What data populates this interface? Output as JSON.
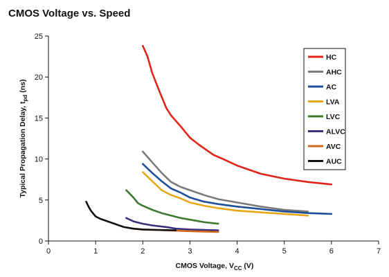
{
  "chart_data": {
    "type": "line",
    "title": "CMOS Voltage vs. Speed",
    "xlabel_main": "CMOS Voltage, V",
    "xlabel_sub": "CC",
    "xlabel_tail": " (V)",
    "ylabel_main": "Typical Propagation Delay, t",
    "ylabel_sub": "pd",
    "ylabel_tail": " (ns)",
    "xlim": [
      0,
      7
    ],
    "ylim": [
      0,
      25
    ],
    "xticks": [
      0,
      1,
      2,
      3,
      4,
      5,
      6,
      7
    ],
    "yticks": [
      0,
      5,
      10,
      15,
      20,
      25
    ],
    "grid": false,
    "legend_position": "top-right",
    "series": [
      {
        "name": "HC",
        "color": "#e2231a",
        "points": [
          [
            2.0,
            23.8
          ],
          [
            2.1,
            22.5
          ],
          [
            2.2,
            20.5
          ],
          [
            2.35,
            18.3
          ],
          [
            2.5,
            16.2
          ],
          [
            2.6,
            15.3
          ],
          [
            2.8,
            14.0
          ],
          [
            3.0,
            12.6
          ],
          [
            3.2,
            11.7
          ],
          [
            3.5,
            10.5
          ],
          [
            3.7,
            10.0
          ],
          [
            4.0,
            9.2
          ],
          [
            4.5,
            8.2
          ],
          [
            5.0,
            7.6
          ],
          [
            5.5,
            7.2
          ],
          [
            6.0,
            6.9
          ]
        ]
      },
      {
        "name": "AHC",
        "color": "#7a7a7a",
        "points": [
          [
            2.0,
            10.9
          ],
          [
            2.2,
            9.6
          ],
          [
            2.4,
            8.3
          ],
          [
            2.6,
            7.2
          ],
          [
            2.8,
            6.6
          ],
          [
            3.0,
            6.2
          ],
          [
            3.3,
            5.6
          ],
          [
            3.6,
            5.1
          ],
          [
            4.0,
            4.7
          ],
          [
            4.5,
            4.2
          ],
          [
            5.0,
            3.8
          ],
          [
            5.5,
            3.6
          ]
        ]
      },
      {
        "name": "AC",
        "color": "#1f4e9b",
        "points": [
          [
            2.0,
            9.4
          ],
          [
            2.2,
            8.3
          ],
          [
            2.4,
            7.3
          ],
          [
            2.6,
            6.4
          ],
          [
            2.8,
            5.9
          ],
          [
            3.0,
            5.3
          ],
          [
            3.3,
            4.8
          ],
          [
            3.6,
            4.5
          ],
          [
            4.0,
            4.2
          ],
          [
            4.5,
            3.9
          ],
          [
            5.0,
            3.6
          ],
          [
            5.5,
            3.4
          ],
          [
            6.0,
            3.3
          ]
        ]
      },
      {
        "name": "LVA",
        "color": "#e6a817",
        "points": [
          [
            2.0,
            8.4
          ],
          [
            2.2,
            7.3
          ],
          [
            2.4,
            6.2
          ],
          [
            2.6,
            5.6
          ],
          [
            2.8,
            5.2
          ],
          [
            3.0,
            4.7
          ],
          [
            3.3,
            4.3
          ],
          [
            3.6,
            4.0
          ],
          [
            4.0,
            3.7
          ],
          [
            4.5,
            3.5
          ],
          [
            5.0,
            3.3
          ],
          [
            5.5,
            3.1
          ]
        ]
      },
      {
        "name": "LVC",
        "color": "#3d7a2f",
        "points": [
          [
            1.65,
            6.2
          ],
          [
            1.8,
            5.3
          ],
          [
            1.9,
            4.6
          ],
          [
            2.0,
            4.3
          ],
          [
            2.2,
            3.8
          ],
          [
            2.4,
            3.4
          ],
          [
            2.6,
            3.1
          ],
          [
            2.8,
            2.8
          ],
          [
            3.0,
            2.6
          ],
          [
            3.3,
            2.3
          ],
          [
            3.6,
            2.1
          ]
        ]
      },
      {
        "name": "ALVC",
        "color": "#3b2f7a",
        "points": [
          [
            1.65,
            2.8
          ],
          [
            1.8,
            2.4
          ],
          [
            2.0,
            2.1
          ],
          [
            2.2,
            1.9
          ],
          [
            2.5,
            1.7
          ],
          [
            2.7,
            1.5
          ],
          [
            3.0,
            1.4
          ],
          [
            3.3,
            1.35
          ],
          [
            3.6,
            1.3
          ]
        ]
      },
      {
        "name": "AVC",
        "color": "#d06a1a",
        "points": [
          [
            1.65,
            1.65
          ],
          [
            1.8,
            1.5
          ],
          [
            2.0,
            1.4
          ],
          [
            2.5,
            1.3
          ],
          [
            3.0,
            1.2
          ],
          [
            3.3,
            1.15
          ],
          [
            3.6,
            1.1
          ]
        ]
      },
      {
        "name": "AUC",
        "color": "#111111",
        "points": [
          [
            0.8,
            4.8
          ],
          [
            0.85,
            4.2
          ],
          [
            0.9,
            3.7
          ],
          [
            1.0,
            3.0
          ],
          [
            1.1,
            2.7
          ],
          [
            1.2,
            2.5
          ],
          [
            1.4,
            2.1
          ],
          [
            1.6,
            1.7
          ],
          [
            1.8,
            1.5
          ],
          [
            2.0,
            1.4
          ],
          [
            2.3,
            1.35
          ],
          [
            2.7,
            1.3
          ]
        ]
      }
    ]
  }
}
